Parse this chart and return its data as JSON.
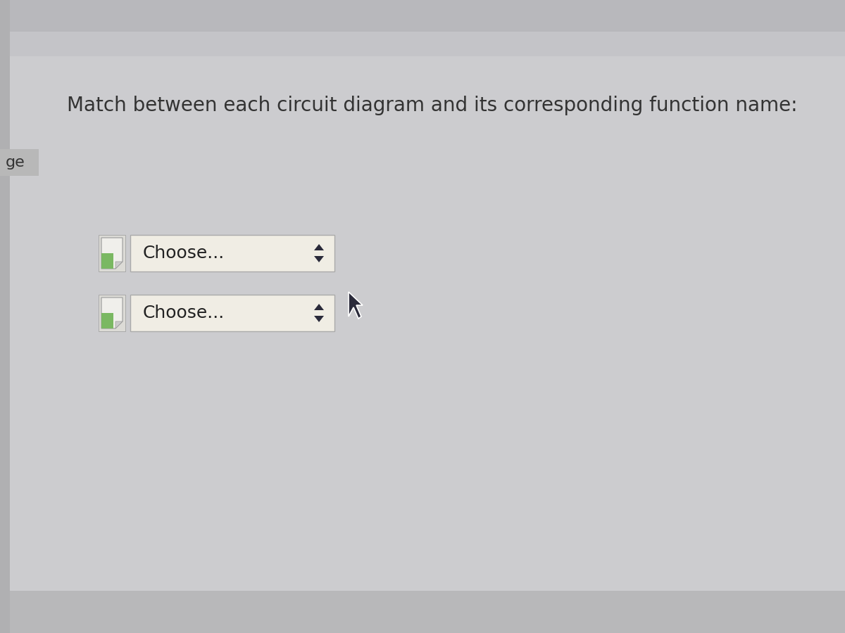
{
  "title": "Match between each circuit diagram and its corresponding function name:",
  "title_fontsize": 20,
  "title_color": "#333333",
  "bg_color": "#c8c8cc",
  "main_bg": "#d0d0d4",
  "top_stripe_color": "#bdbdbd",
  "dropdown_bg": "#f0ede4",
  "dropdown_border": "#aaaaaa",
  "dropdown_text": "Choose...",
  "dropdown_text_color": "#222222",
  "dropdown_fontsize": 18,
  "ge_text": "ge",
  "ge_fontsize": 16,
  "ge_text_color": "#333333",
  "ge_bg": "#b8b8b8",
  "arrow_color": "#2a2a3a",
  "cursor_color": "#2a2a3a"
}
